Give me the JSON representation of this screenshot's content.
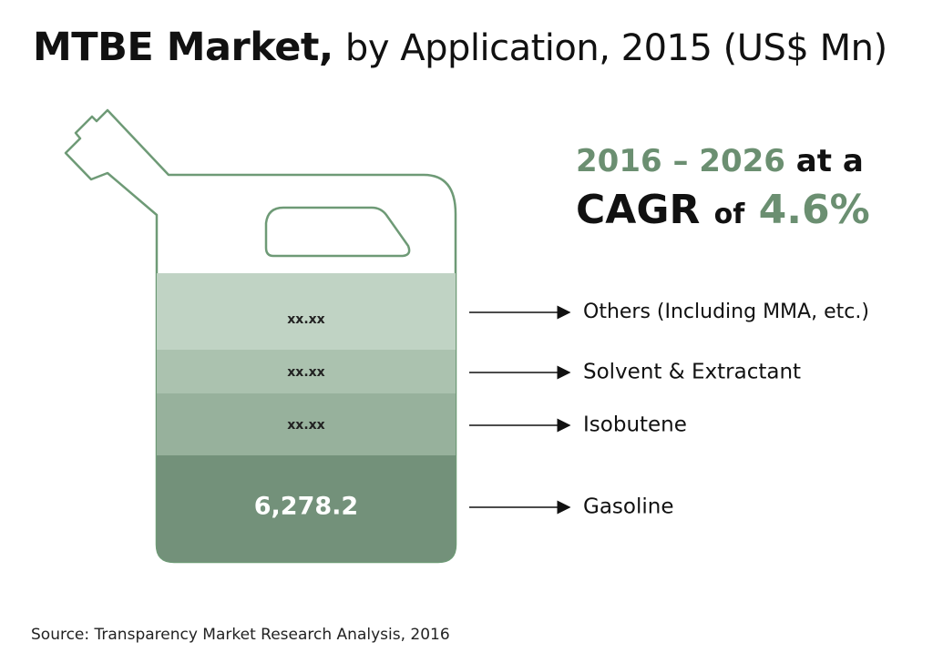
{
  "title": {
    "bold": "MTBE Market,",
    "rest": "by Application, 2015 (US$ Mn)"
  },
  "cagr": {
    "period": "2016 – 2026",
    "at_a": "at a",
    "cagr_label": "CAGR",
    "of": "of",
    "value": "4.6%"
  },
  "chart_data": {
    "type": "stacked-bar",
    "title": "MTBE Market, by Application, 2015 (US$ Mn)",
    "categories": [
      "Gasoline",
      "Isobutene",
      "Solvent & Extractant",
      "Others (Including MMA, etc.)"
    ],
    "labels": [
      "6,278.2",
      "xx.xx",
      "xx.xx",
      "xx.xx"
    ],
    "values": [
      6278.2,
      null,
      null,
      null
    ],
    "colors": [
      "#73917a",
      "#97b19c",
      "#abc2af",
      "#c0d3c4"
    ]
  },
  "colors": {
    "accent_green": "#6b8f71",
    "outline": "#6e9a76"
  },
  "source": "Source: Transparency Market Research Analysis, 2016"
}
